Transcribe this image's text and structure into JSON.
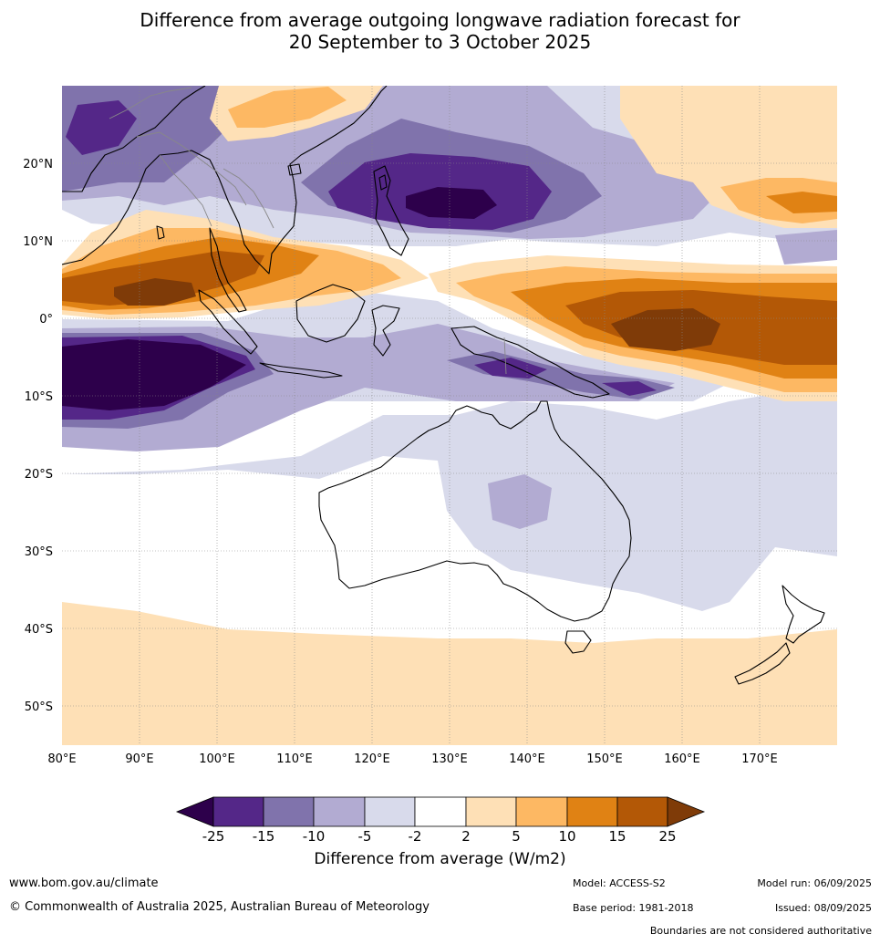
{
  "title": {
    "line1": "Difference from average outgoing longwave radiation forecast for",
    "line2": "20 September to 3 October 2025"
  },
  "map": {
    "type": "contour-map",
    "lon_range": [
      80,
      180
    ],
    "lat_range": [
      -55,
      30
    ],
    "lon_ticks": [
      "80°E",
      "90°E",
      "100°E",
      "110°E",
      "120°E",
      "130°E",
      "140°E",
      "150°E",
      "160°E",
      "170°E"
    ],
    "lat_ticks": [
      "20°N",
      "10°N",
      "0°",
      "10°S",
      "20°S",
      "30°S",
      "40°S",
      "50°S"
    ],
    "grid": true
  },
  "colorbar": {
    "title": "Difference from average (W/m2)",
    "levels": [
      "-25",
      "-15",
      "-10",
      "-5",
      "-2",
      "2",
      "5",
      "10",
      "15",
      "25"
    ],
    "colors": [
      "#2d004b",
      "#542788",
      "#8073ac",
      "#b2abd2",
      "#d8daeb",
      "#ffffff",
      "#fee0b6",
      "#fdb863",
      "#e08214",
      "#b35806",
      "#7f3b08"
    ]
  },
  "footer": {
    "url": "www.bom.gov.au/climate",
    "copyright": "© Commonwealth of Australia 2025, Australian Bureau of Meteorology",
    "model": "Model: ACCESS-S2",
    "model_run": "Model run: 06/09/2025",
    "base_period": "Base period: 1981-2018",
    "issued": "Issued: 08/09/2025",
    "disclaimer": "Boundaries are not considered authoritative"
  }
}
